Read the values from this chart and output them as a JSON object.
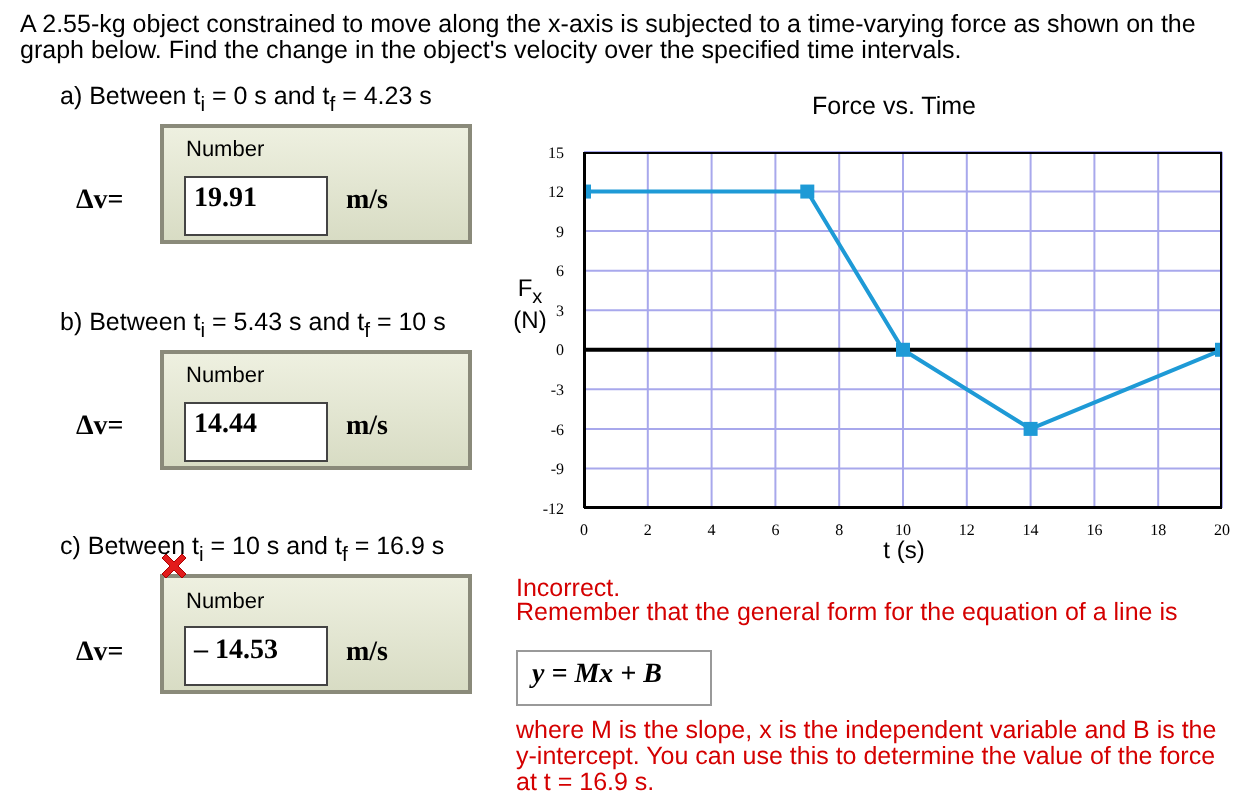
{
  "chart_data": {
    "type": "line",
    "title": "Force vs. Time",
    "xlabel": "t (s)",
    "ylabel": "F$_{x}$ (N)",
    "x": [
      0,
      7,
      10,
      14,
      20
    ],
    "series": [
      {
        "color": "#1e9ad6",
        "values": [
          12,
          12,
          0,
          -6,
          0
        ]
      }
    ],
    "xlim": [
      0,
      20
    ],
    "xticks": [
      0,
      2,
      4,
      6,
      8,
      10,
      12,
      14,
      16,
      18,
      20
    ],
    "ylim": [
      -12,
      15
    ],
    "yticks": [
      -12,
      -9,
      -6,
      -3,
      0,
      3,
      6,
      9,
      12,
      15
    ],
    "grid": true,
    "marker": "square",
    "line_style": "solid",
    "ref_lines": [
      {
        "axis": "y",
        "value": 0,
        "color": "#000000"
      }
    ],
    "annotations": [
      "A 2.55-kg object constrained to move along the x-axis is subjected to a time-varying force as shown on the graph below.  Find the change in the object's velocity over the specified time intervals.",
      "a) Between t$_{i}$ = 0 s and t$_{f}$ = 4.23 s",
      "Number",
      "Δv=",
      "19.91",
      "m/s",
      "b) Between t$_{i}$ = 5.43 s and t$_{f}$ = 10 s",
      "Number",
      "Δv=",
      "14.44",
      "m/s",
      "c) Between t$_{i}$ = 10 s and t$_{f}$ = 16.9 s",
      "Number",
      "Δv=",
      "– 14.53",
      "m/s",
      "Incorrect.",
      "Remember that the general form for the equation of a line is",
      "y = Mx + B",
      "where M is the slope, x is the independent variable and B is the y-intercept.  You can use this to determine the value of the force at t = 16.9 s."
    ]
  }
}
